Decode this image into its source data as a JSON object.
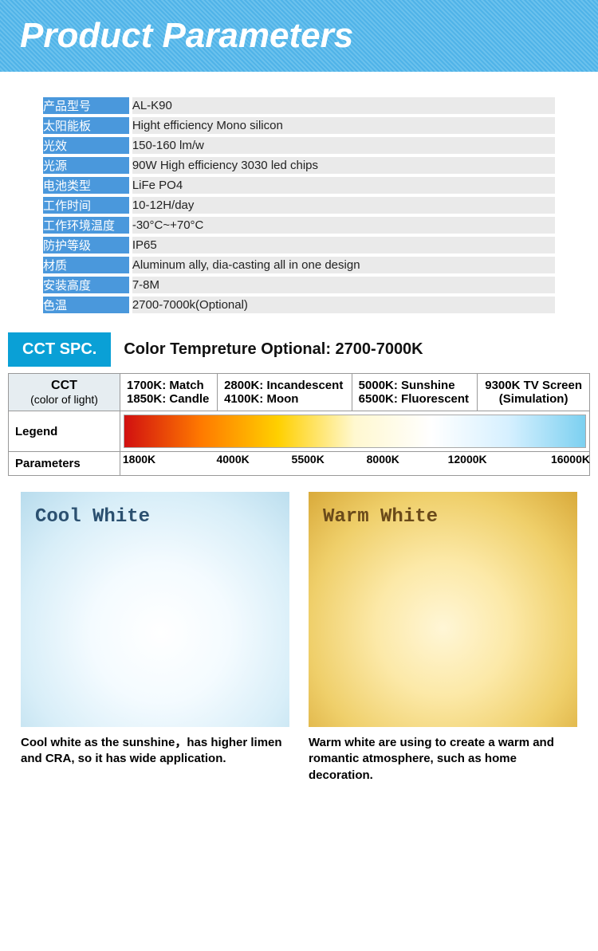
{
  "header": {
    "title": "Product Parameters"
  },
  "params": {
    "rows": [
      {
        "label": "产品型号",
        "value": "AL-K90"
      },
      {
        "label": "太阳能板",
        "value": "Hight efficiency Mono silicon"
      },
      {
        "label": "光效",
        "value": "150-160 lm/w"
      },
      {
        "label": "光源",
        "value": "90W High efficiency 3030 led chips"
      },
      {
        "label": "电池类型",
        "value": "LiFe PO4"
      },
      {
        "label": "工作时间",
        "value": "10-12H/day"
      },
      {
        "label": "工作环境温度",
        "value": "-30°C~+70°C"
      },
      {
        "label": "防护等级",
        "value": "IP65"
      },
      {
        "label": "材质",
        "value": "Aluminum ally, dia-casting all in one design"
      },
      {
        "label": "安装高度",
        "value": "7-8M"
      },
      {
        "label": "色温",
        "value": "2700-7000k(Optional)"
      }
    ],
    "label_bg": "#4a98dc",
    "value_bg": "#eaeaea"
  },
  "cct": {
    "badge": "CCT SPC.",
    "subtitle": "Color Tempreture Optional: 2700-7000K",
    "head": {
      "main": "CCT",
      "sub": "(color of light)"
    },
    "refs": [
      "1700K: Match\n1850K: Candle",
      "2800K: Incandescent\n4100K: Moon",
      "5000K: Sunshine\n6500K: Fluorescent",
      "9300K TV Screen\n(Simulation)"
    ],
    "legend_label": "Legend",
    "parameters_label": "Parameters",
    "gradient_stops": [
      "#d11010",
      "#ff7a00",
      "#ffd000",
      "#fff8d0",
      "#ffffff",
      "#d6f0ff",
      "#7cd0f0"
    ],
    "ticks": [
      {
        "label": "1800K",
        "pct": 4
      },
      {
        "label": "4000K",
        "pct": 24
      },
      {
        "label": "5500K",
        "pct": 40
      },
      {
        "label": "8000K",
        "pct": 56
      },
      {
        "label": "12000K",
        "pct": 74
      },
      {
        "label": "16000K",
        "pct": 96
      }
    ]
  },
  "swatches": {
    "cool": {
      "title": "Cool White",
      "title_color": "#2b5070",
      "bg_gradient": "radial-gradient(circle at 52% 60%, #ffffff 0%, #f4fbff 35%, #d8eef8 70%, #b8dced 100%)",
      "desc": "Cool white as the sunshine，has higher limen and CRA, so it has wide application."
    },
    "warm": {
      "title": "Warm White",
      "title_color": "#6a4a1a",
      "bg_gradient": "radial-gradient(circle at 50% 58%, #fff6d6 0%, #fce9a8 35%, #efcf6a 70%, #d9aa3a 100%)",
      "desc": "Warm white are using to create a warm and romantic atmosphere, such as home decoration."
    }
  }
}
